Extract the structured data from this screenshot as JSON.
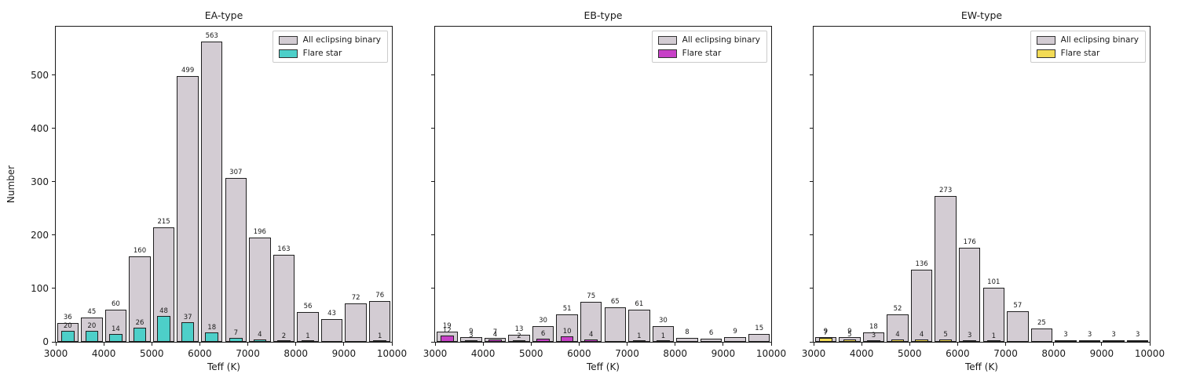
{
  "figure": {
    "background": "#ffffff",
    "text_color": "#1a1a1a"
  },
  "legend": {
    "all_label": "All eclipsing binary",
    "flare_label": "Flare star"
  },
  "colors": {
    "all_eclipsing_binary": "#d3ccd3",
    "bar_edge": "#1f1f1f",
    "flare_ea": "#4dcfc9",
    "flare_eb": "#c741c7",
    "flare_ew": "#f3db56"
  },
  "chart_data": [
    {
      "type": "bar",
      "title": "EA-type",
      "xlabel": "Teff (K)",
      "ylabel": "Number",
      "xlim": [
        3000,
        10000
      ],
      "ylim": [
        0,
        591
      ],
      "x_ticks": [
        3000,
        4000,
        5000,
        6000,
        7000,
        8000,
        9000,
        10000
      ],
      "y_ticks": [
        0,
        100,
        200,
        300,
        400,
        500
      ],
      "show_y_tick_labels": true,
      "show_ylabel": true,
      "grid": false,
      "legend_position": "upper right",
      "bin_width": 500,
      "bin_start": 3000,
      "series": [
        {
          "name": "All eclipsing binary",
          "color": "#d3ccd3",
          "values": [
            36,
            45,
            60,
            160,
            215,
            499,
            563,
            307,
            196,
            163,
            56,
            43,
            72,
            76
          ]
        },
        {
          "name": "Flare star",
          "color": "#4dcfc9",
          "values": [
            20,
            20,
            14,
            26,
            48,
            37,
            18,
            7,
            4,
            2,
            1,
            null,
            null,
            1
          ]
        }
      ]
    },
    {
      "type": "bar",
      "title": "EB-type",
      "xlabel": "Teff (K)",
      "ylabel": "",
      "xlim": [
        3000,
        10000
      ],
      "ylim": [
        0,
        591
      ],
      "x_ticks": [
        3000,
        4000,
        5000,
        6000,
        7000,
        8000,
        9000,
        10000
      ],
      "y_ticks": [
        0,
        100,
        200,
        300,
        400,
        500
      ],
      "show_y_tick_labels": false,
      "show_ylabel": false,
      "grid": false,
      "legend_position": "upper right",
      "bin_width": 500,
      "bin_start": 3000,
      "series": [
        {
          "name": "All eclipsing binary",
          "color": "#d3ccd3",
          "values": [
            19,
            9,
            7,
            13,
            30,
            51,
            75,
            65,
            61,
            30,
            8,
            6,
            9,
            15
          ]
        },
        {
          "name": "Flare star",
          "color": "#c741c7",
          "values": [
            12,
            3,
            4,
            2,
            6,
            10,
            4,
            null,
            1,
            1,
            null,
            null,
            null,
            null
          ]
        }
      ]
    },
    {
      "type": "bar",
      "title": "EW-type",
      "xlabel": "Teff (K)",
      "ylabel": "",
      "xlim": [
        3000,
        10000
      ],
      "ylim": [
        0,
        591
      ],
      "x_ticks": [
        3000,
        4000,
        5000,
        6000,
        7000,
        8000,
        9000,
        10000
      ],
      "y_ticks": [
        0,
        100,
        200,
        300,
        400,
        500
      ],
      "show_y_tick_labels": false,
      "show_ylabel": false,
      "grid": false,
      "legend_position": "upper right",
      "bin_width": 500,
      "bin_start": 3000,
      "series": [
        {
          "name": "All eclipsing binary",
          "color": "#d3ccd3",
          "values": [
            9,
            9,
            18,
            52,
            136,
            273,
            176,
            101,
            57,
            25,
            3,
            3,
            3,
            3
          ]
        },
        {
          "name": "Flare star",
          "color": "#f3db56",
          "values": [
            7,
            5,
            3,
            4,
            4,
            5,
            3,
            1,
            null,
            null,
            null,
            null,
            null,
            null
          ]
        }
      ]
    }
  ]
}
